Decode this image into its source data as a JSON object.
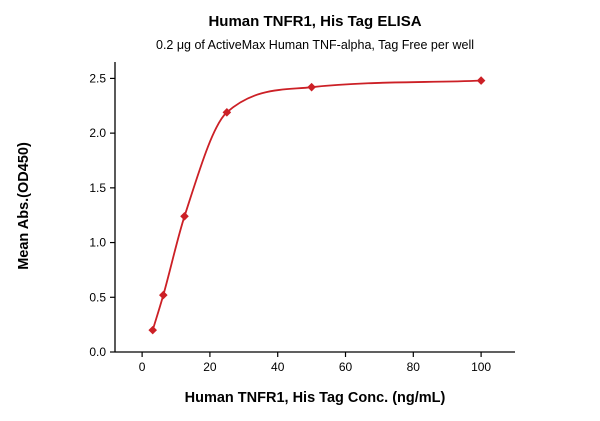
{
  "chart_data": {
    "type": "scatter",
    "title": "Human TNFR1, His Tag ELISA",
    "subtitle": "0.2 μg of ActiveMax Human TNF-alpha, Tag Free per well",
    "xlabel": "Human TNFR1, His Tag Conc. (ng/mL)",
    "ylabel": "Mean Abs.(OD450)",
    "x": [
      3.125,
      6.25,
      12.5,
      25,
      50,
      100
    ],
    "y": [
      0.2,
      0.52,
      1.24,
      2.19,
      2.42,
      2.48
    ],
    "curve": "4PL sigmoidal fit through points",
    "xticks": [
      0,
      20,
      40,
      60,
      80,
      100
    ],
    "xtick_labels": [
      "0",
      "20",
      "40",
      "60",
      "80",
      "100"
    ],
    "yticks": [
      0.0,
      0.5,
      1.0,
      1.5,
      2.0,
      2.5
    ],
    "ytick_labels": [
      "0.0",
      "0.5",
      "1.0",
      "1.5",
      "2.0",
      "2.5"
    ],
    "xlim": [
      -8,
      110
    ],
    "ylim": [
      0,
      2.65
    ],
    "grid": false,
    "legend": "none",
    "colors": {
      "marker": "#cc2026",
      "curve": "#cc2026",
      "axis": "#000000",
      "background": "#ffffff"
    }
  }
}
